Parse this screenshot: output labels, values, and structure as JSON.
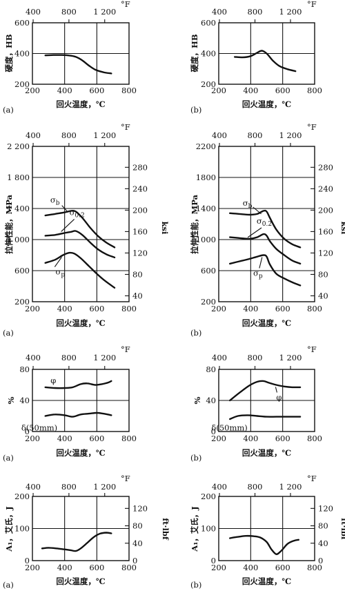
{
  "chart_data": [
    {
      "type": "line",
      "panel_label": "(a)",
      "ylabel": "硬度，HB",
      "xlabel": "回火温度，℃",
      "top_axis_label": "°F",
      "right_axis_label": "",
      "xlim": [
        200,
        800
      ],
      "ylim": [
        200,
        600
      ],
      "x_ticks": [
        "200",
        "400",
        "600",
        "800"
      ],
      "y_ticks": [
        "200",
        "400",
        "600"
      ],
      "top_ticks": [
        "400",
        "800",
        "1 200"
      ],
      "right_ticks": [],
      "series": [
        {
          "label": "",
          "x": [
            280,
            330,
            380,
            430,
            470,
            510,
            550,
            590,
            640,
            690
          ],
          "y": [
            388,
            390,
            390,
            387,
            378,
            355,
            322,
            295,
            278,
            270
          ]
        }
      ]
    },
    {
      "type": "line",
      "panel_label": "(b)",
      "ylabel": "硬度，HB",
      "xlabel": "回火温度，℃",
      "top_axis_label": "°F",
      "right_axis_label": "",
      "xlim": [
        200,
        800
      ],
      "ylim": [
        200,
        600
      ],
      "x_ticks": [
        "200",
        "400",
        "600",
        "800"
      ],
      "y_ticks": [
        "200",
        "400",
        "600"
      ],
      "top_ticks": [
        "400",
        "800",
        "1 200"
      ],
      "right_ticks": [],
      "series": [
        {
          "label": "",
          "x": [
            300,
            350,
            400,
            440,
            470,
            500,
            540,
            580,
            630,
            680
          ],
          "y": [
            378,
            375,
            383,
            405,
            418,
            400,
            352,
            318,
            298,
            285
          ]
        }
      ]
    },
    {
      "type": "line",
      "panel_label": "(a)",
      "ylabel": "拉伸性能，MPa",
      "xlabel": "回火温度，℃",
      "top_axis_label": "°F",
      "right_axis_label": "ksi",
      "xlim": [
        200,
        800
      ],
      "ylim": [
        200,
        2200
      ],
      "x_ticks": [
        "200",
        "400",
        "600",
        "800"
      ],
      "y_ticks": [
        "200",
        "600",
        "1 000",
        "1 400",
        "1 800",
        "2 200"
      ],
      "top_ticks": [
        "400",
        "800",
        "1 200"
      ],
      "right_ticks": [
        "40",
        "80",
        "120",
        "160",
        "200",
        "240",
        "280"
      ],
      "series": [
        {
          "label": "σb",
          "x": [
            280,
            340,
            400,
            440,
            470,
            510,
            560,
            610,
            660,
            710
          ],
          "y": [
            1310,
            1330,
            1350,
            1370,
            1360,
            1280,
            1150,
            1040,
            960,
            900
          ]
        },
        {
          "label": "σ0.2",
          "x": [
            280,
            340,
            400,
            440,
            470,
            510,
            560,
            610,
            660,
            710
          ],
          "y": [
            1050,
            1060,
            1085,
            1100,
            1110,
            1060,
            960,
            870,
            810,
            770
          ]
        },
        {
          "label": "σp",
          "x": [
            280,
            340,
            390,
            430,
            460,
            500,
            550,
            600,
            650,
            710
          ],
          "y": [
            700,
            740,
            800,
            830,
            820,
            760,
            660,
            560,
            470,
            380
          ]
        }
      ]
    },
    {
      "type": "line",
      "panel_label": "(b)",
      "ylabel": "拉伸性能，MPa",
      "xlabel": "回火温度，℃",
      "top_axis_label": "°F",
      "right_axis_label": "ksi",
      "xlim": [
        200,
        800
      ],
      "ylim": [
        200,
        2200
      ],
      "x_ticks": [
        "200",
        "400",
        "600",
        "800"
      ],
      "y_ticks": [
        "200",
        "600",
        "1000",
        "1400",
        "1800",
        "2200"
      ],
      "top_ticks": [
        "400",
        "800",
        "1 200"
      ],
      "right_ticks": [
        "40",
        "80",
        "120",
        "160",
        "200",
        "240",
        "280"
      ],
      "series": [
        {
          "label": "σb",
          "x": [
            270,
            330,
            390,
            440,
            480,
            500,
            520,
            560,
            610,
            660,
            710
          ],
          "y": [
            1340,
            1330,
            1320,
            1330,
            1370,
            1360,
            1280,
            1130,
            1010,
            940,
            900
          ]
        },
        {
          "label": "σ0.2",
          "x": [
            270,
            330,
            390,
            440,
            480,
            500,
            520,
            560,
            610,
            660,
            710
          ],
          "y": [
            1030,
            1020,
            1010,
            1030,
            1070,
            1050,
            980,
            880,
            800,
            730,
            690
          ]
        },
        {
          "label": "σp",
          "x": [
            270,
            330,
            390,
            440,
            480,
            500,
            520,
            560,
            610,
            660,
            710
          ],
          "y": [
            690,
            720,
            750,
            780,
            800,
            780,
            680,
            560,
            500,
            450,
            410
          ]
        }
      ]
    },
    {
      "type": "line",
      "panel_label": "(a)",
      "ylabel": "%",
      "xlabel": "回火温度，℃",
      "top_axis_label": "°F",
      "right_axis_label": "",
      "xlim": [
        200,
        800
      ],
      "ylim": [
        0,
        80
      ],
      "x_ticks": [
        "200",
        "400",
        "600",
        "800"
      ],
      "y_ticks": [
        "0",
        "40",
        "80"
      ],
      "top_ticks": [
        "400",
        "800",
        "1 200"
      ],
      "right_ticks": [],
      "series": [
        {
          "label": "φ",
          "x": [
            280,
            340,
            400,
            450,
            500,
            540,
            590,
            630,
            670,
            690
          ],
          "y": [
            57,
            56,
            56,
            57,
            61,
            62,
            60,
            61,
            63,
            65
          ]
        },
        {
          "label": "δ(50mm)",
          "x": [
            280,
            340,
            400,
            450,
            500,
            550,
            600,
            640,
            690
          ],
          "y": [
            20,
            22,
            21,
            19,
            22,
            23,
            24,
            23,
            21
          ]
        }
      ]
    },
    {
      "type": "line",
      "panel_label": "(b)",
      "ylabel": "%",
      "xlabel": "回火温度，℃",
      "top_axis_label": "°F",
      "right_axis_label": "",
      "xlim": [
        200,
        800
      ],
      "ylim": [
        0,
        80
      ],
      "x_ticks": [
        "200",
        "400",
        "600",
        "800"
      ],
      "y_ticks": [
        "0",
        "40",
        "80"
      ],
      "top_ticks": [
        "400",
        "800",
        "1 200"
      ],
      "right_ticks": [],
      "series": [
        {
          "label": "φ",
          "x": [
            270,
            330,
            390,
            440,
            480,
            510,
            560,
            610,
            660,
            710
          ],
          "y": [
            40,
            50,
            59,
            64,
            65,
            63,
            60,
            58,
            57,
            57
          ]
        },
        {
          "label": "δ(50mm)",
          "x": [
            270,
            320,
            380,
            440,
            500,
            560,
            620,
            680,
            710
          ],
          "y": [
            16,
            20,
            21,
            20,
            19,
            19,
            19,
            19,
            19
          ]
        }
      ]
    },
    {
      "type": "line",
      "panel_label": "(a)",
      "ylabel": "A₁，艾氏，J",
      "xlabel": "回火温度，℃",
      "top_axis_label": "°F",
      "right_axis_label": "ft·lbf",
      "xlim": [
        200,
        800
      ],
      "ylim": [
        0,
        200
      ],
      "x_ticks": [
        "200",
        "400",
        "600",
        "800"
      ],
      "y_ticks": [
        "0",
        "100",
        "200"
      ],
      "top_ticks": [
        "400",
        "800",
        "1 200"
      ],
      "right_ticks": [
        "0",
        "40",
        "80",
        "120"
      ],
      "series": [
        {
          "label": "",
          "x": [
            260,
            300,
            350,
            400,
            440,
            470,
            500,
            540,
            580,
            620,
            660,
            690
          ],
          "y": [
            38,
            40,
            38,
            35,
            32,
            30,
            38,
            55,
            73,
            84,
            87,
            85
          ]
        }
      ]
    },
    {
      "type": "line",
      "panel_label": "(b)",
      "ylabel": "A₁，艾氏，J",
      "xlabel": "回火温度，℃",
      "top_axis_label": "°F",
      "right_axis_label": "ft·lbf",
      "xlim": [
        200,
        800
      ],
      "ylim": [
        0,
        200
      ],
      "x_ticks": [
        "200",
        "400",
        "600",
        "800"
      ],
      "y_ticks": [
        "0",
        "100",
        "200"
      ],
      "top_ticks": [
        "400",
        "800",
        "1 200"
      ],
      "right_ticks": [
        "0",
        "40",
        "80",
        "120"
      ],
      "series": [
        {
          "label": "",
          "x": [
            270,
            320,
            370,
            420,
            460,
            500,
            530,
            560,
            590,
            630,
            670,
            700
          ],
          "y": [
            70,
            74,
            77,
            76,
            72,
            58,
            35,
            20,
            30,
            52,
            62,
            65
          ]
        }
      ]
    }
  ]
}
